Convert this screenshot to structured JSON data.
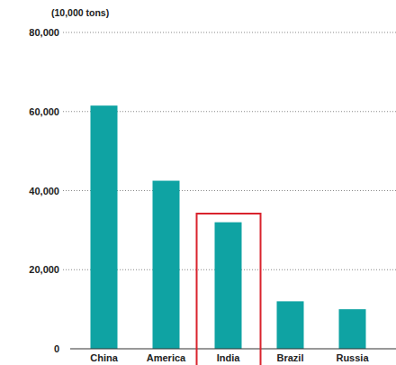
{
  "chart_data": {
    "type": "bar",
    "y_label": "(10,000 tons)",
    "categories": [
      "China",
      "America",
      "India",
      "Brazil",
      "Russia"
    ],
    "values": [
      61500,
      42500,
      32000,
      12000,
      10000
    ],
    "color": "#0fa3a3",
    "ylim": [
      0,
      80000
    ],
    "yticks": [
      0,
      {
        "value": 20000,
        "label": "20,000"
      },
      {
        "value": 40000,
        "label": "40,000"
      },
      {
        "value": 60000,
        "label": "60,000"
      },
      {
        "value": 80000,
        "label": "80,000"
      }
    ],
    "grid": true
  }
}
